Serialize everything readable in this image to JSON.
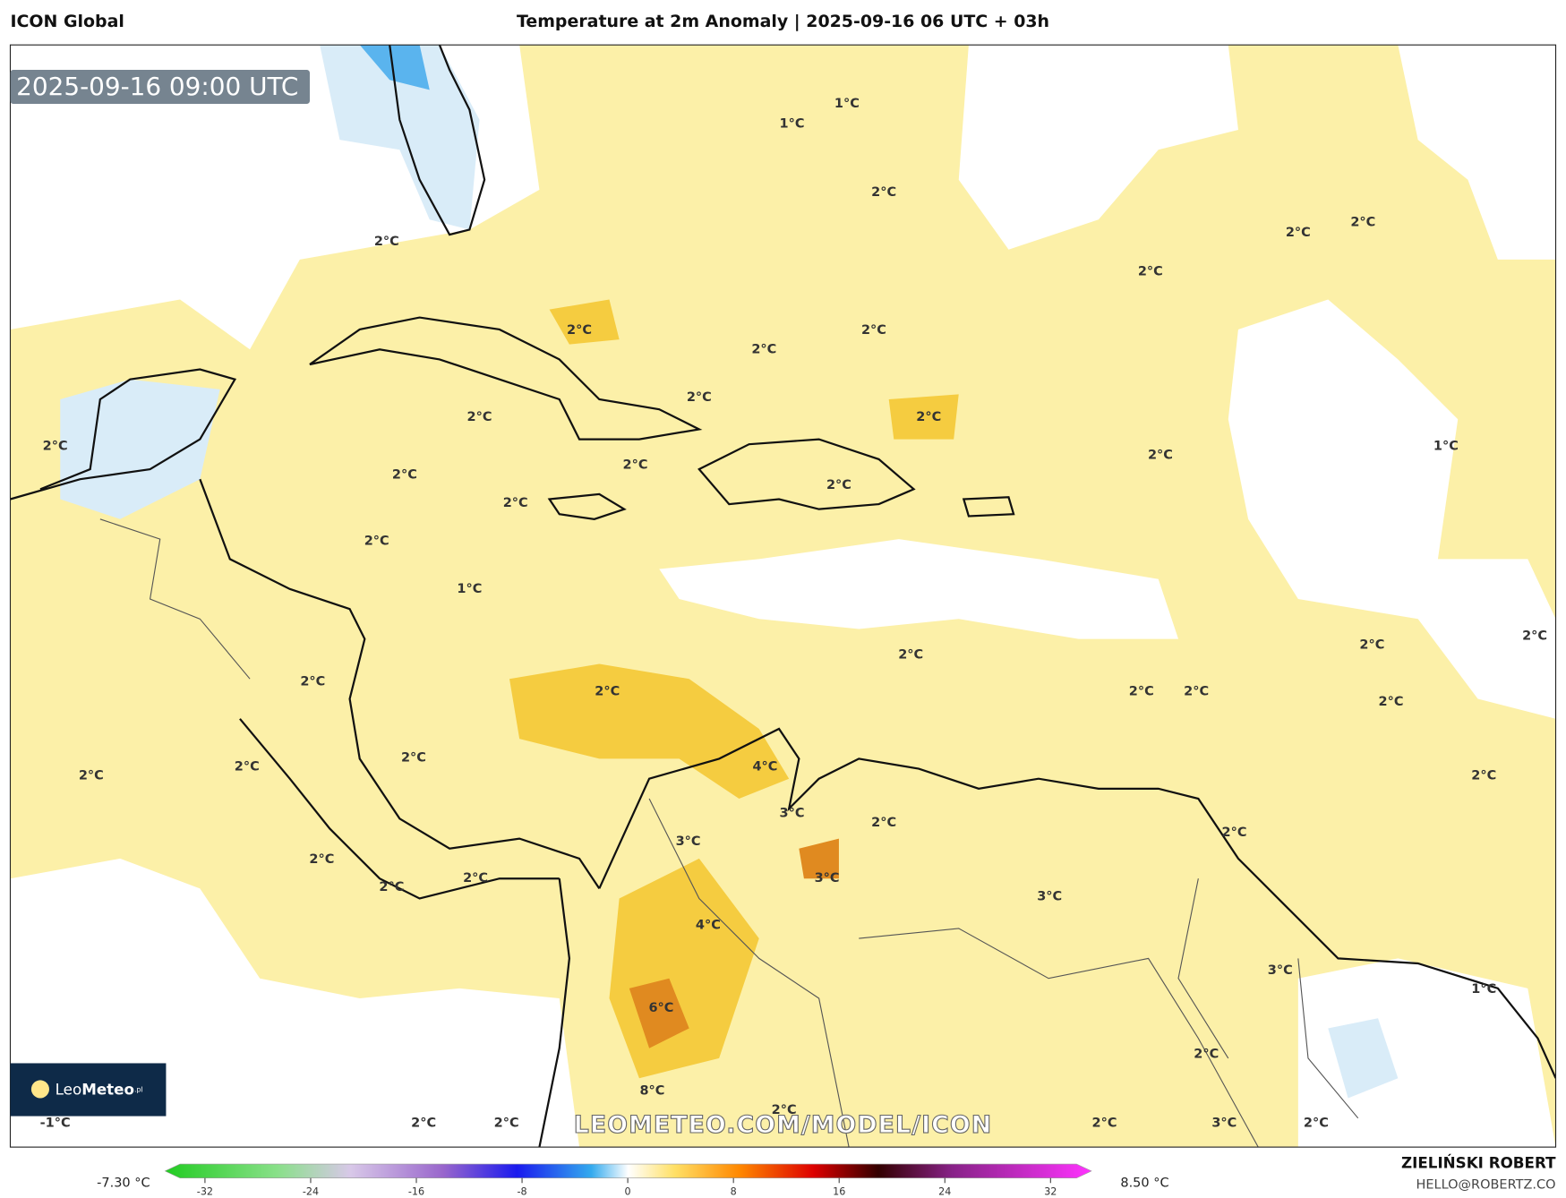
{
  "header": {
    "model": "ICON Global",
    "title": "Temperature at 2m Anomaly | 2025-09-16 06 UTC + 03h"
  },
  "map": {
    "timestamp": "2025-09-16 09:00 UTC",
    "labels": [
      "1°C",
      "1°C",
      "2°C",
      "2°C",
      "2°C",
      "2°C",
      "2°C",
      "2°C",
      "2°C",
      "2°C",
      "2°C",
      "2°C",
      "2°C",
      "1°C",
      "2°C",
      "2°C",
      "2°C",
      "2°C",
      "2°C",
      "2°C",
      "2°C",
      "1°C",
      "2°C",
      "2°C",
      "2°C",
      "2°C",
      "2°C",
      "2°C",
      "2°C",
      "2°C",
      "2°C",
      "4°C",
      "2°C",
      "2°C",
      "2°C",
      "3°C",
      "2°C",
      "2°C",
      "3°C",
      "2°C",
      "3°C",
      "2°C",
      "2°C",
      "3°C",
      "4°C",
      "3°C",
      "1°C",
      "6°C",
      "2°C",
      "8°C",
      "2°C",
      "-1°C",
      "2°C",
      "2°C",
      "2°C",
      "3°C",
      "2°C"
    ],
    "watermark": "LEOMETEO.COM/MODEL/ICON",
    "logo": {
      "light": "Leo",
      "bold": "Meteo",
      "suffix": ".pl"
    }
  },
  "legend": {
    "min_label": "-7.30 °C",
    "max_label": "8.50 °C",
    "ticks": [
      -32,
      -24,
      -16,
      -8,
      0,
      8,
      16,
      24,
      32
    ]
  },
  "credit": {
    "name": "ZIELIŃSKI ROBERT",
    "email": "HELLO@ROBERTZ.CO"
  }
}
